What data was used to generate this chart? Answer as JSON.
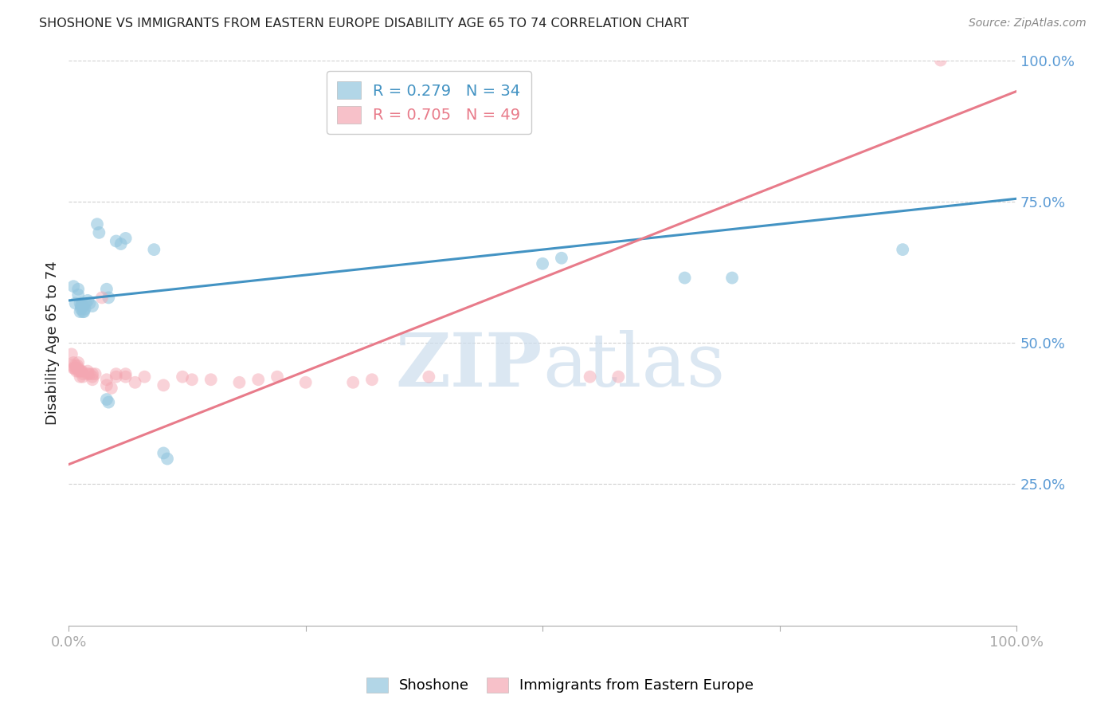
{
  "title": "SHOSHONE VS IMMIGRANTS FROM EASTERN EUROPE DISABILITY AGE 65 TO 74 CORRELATION CHART",
  "source": "Source: ZipAtlas.com",
  "ylabel": "Disability Age 65 to 74",
  "xlim": [
    0,
    1
  ],
  "ylim": [
    0,
    1
  ],
  "xticks": [
    0.0,
    0.25,
    0.5,
    0.75,
    1.0
  ],
  "xticklabels": [
    "0.0%",
    "",
    "",
    "",
    "100.0%"
  ],
  "ytick_positions": [
    0.0,
    0.25,
    0.5,
    0.75,
    1.0
  ],
  "ytick_labels_right": [
    "",
    "25.0%",
    "50.0%",
    "75.0%",
    "100.0%"
  ],
  "legend_blue_r": "R = 0.279",
  "legend_blue_n": "N = 34",
  "legend_pink_r": "R = 0.705",
  "legend_pink_n": "N = 49",
  "blue_color": "#92c5de",
  "pink_color": "#f4a7b2",
  "blue_line_color": "#4393c3",
  "pink_line_color": "#e87b8a",
  "watermark_color": "#ccdded",
  "blue_scatter": [
    [
      0.005,
      0.6
    ],
    [
      0.007,
      0.57
    ],
    [
      0.01,
      0.595
    ],
    [
      0.01,
      0.585
    ],
    [
      0.012,
      0.57
    ],
    [
      0.012,
      0.555
    ],
    [
      0.013,
      0.565
    ],
    [
      0.013,
      0.56
    ],
    [
      0.014,
      0.57
    ],
    [
      0.015,
      0.565
    ],
    [
      0.015,
      0.555
    ],
    [
      0.016,
      0.555
    ],
    [
      0.017,
      0.56
    ],
    [
      0.018,
      0.57
    ],
    [
      0.02,
      0.575
    ],
    [
      0.022,
      0.57
    ],
    [
      0.025,
      0.565
    ],
    [
      0.03,
      0.71
    ],
    [
      0.032,
      0.695
    ],
    [
      0.04,
      0.595
    ],
    [
      0.042,
      0.58
    ],
    [
      0.05,
      0.68
    ],
    [
      0.055,
      0.675
    ],
    [
      0.06,
      0.685
    ],
    [
      0.04,
      0.4
    ],
    [
      0.042,
      0.395
    ],
    [
      0.09,
      0.665
    ],
    [
      0.1,
      0.305
    ],
    [
      0.104,
      0.295
    ],
    [
      0.5,
      0.64
    ],
    [
      0.52,
      0.65
    ],
    [
      0.65,
      0.615
    ],
    [
      0.7,
      0.615
    ],
    [
      0.88,
      0.665
    ]
  ],
  "pink_scatter": [
    [
      0.003,
      0.48
    ],
    [
      0.004,
      0.46
    ],
    [
      0.005,
      0.455
    ],
    [
      0.005,
      0.465
    ],
    [
      0.006,
      0.455
    ],
    [
      0.007,
      0.46
    ],
    [
      0.008,
      0.45
    ],
    [
      0.008,
      0.455
    ],
    [
      0.009,
      0.46
    ],
    [
      0.01,
      0.455
    ],
    [
      0.01,
      0.45
    ],
    [
      0.01,
      0.465
    ],
    [
      0.012,
      0.45
    ],
    [
      0.012,
      0.44
    ],
    [
      0.013,
      0.45
    ],
    [
      0.014,
      0.45
    ],
    [
      0.015,
      0.445
    ],
    [
      0.015,
      0.44
    ],
    [
      0.02,
      0.445
    ],
    [
      0.02,
      0.45
    ],
    [
      0.022,
      0.445
    ],
    [
      0.025,
      0.445
    ],
    [
      0.025,
      0.44
    ],
    [
      0.025,
      0.435
    ],
    [
      0.028,
      0.445
    ],
    [
      0.035,
      0.58
    ],
    [
      0.04,
      0.435
    ],
    [
      0.04,
      0.425
    ],
    [
      0.045,
      0.42
    ],
    [
      0.05,
      0.445
    ],
    [
      0.05,
      0.44
    ],
    [
      0.06,
      0.445
    ],
    [
      0.06,
      0.44
    ],
    [
      0.07,
      0.43
    ],
    [
      0.08,
      0.44
    ],
    [
      0.1,
      0.425
    ],
    [
      0.12,
      0.44
    ],
    [
      0.13,
      0.435
    ],
    [
      0.15,
      0.435
    ],
    [
      0.18,
      0.43
    ],
    [
      0.2,
      0.435
    ],
    [
      0.22,
      0.44
    ],
    [
      0.25,
      0.43
    ],
    [
      0.3,
      0.43
    ],
    [
      0.32,
      0.435
    ],
    [
      0.38,
      0.44
    ],
    [
      0.55,
      0.44
    ],
    [
      0.58,
      0.44
    ],
    [
      0.92,
      1.0
    ]
  ],
  "blue_line_y_start": 0.575,
  "blue_line_y_end": 0.755,
  "pink_line_y_start": 0.285,
  "pink_line_y_end": 0.945,
  "background_color": "#ffffff",
  "grid_color": "#d0d0d0",
  "title_color": "#222222",
  "tick_color": "#5b9bd5"
}
